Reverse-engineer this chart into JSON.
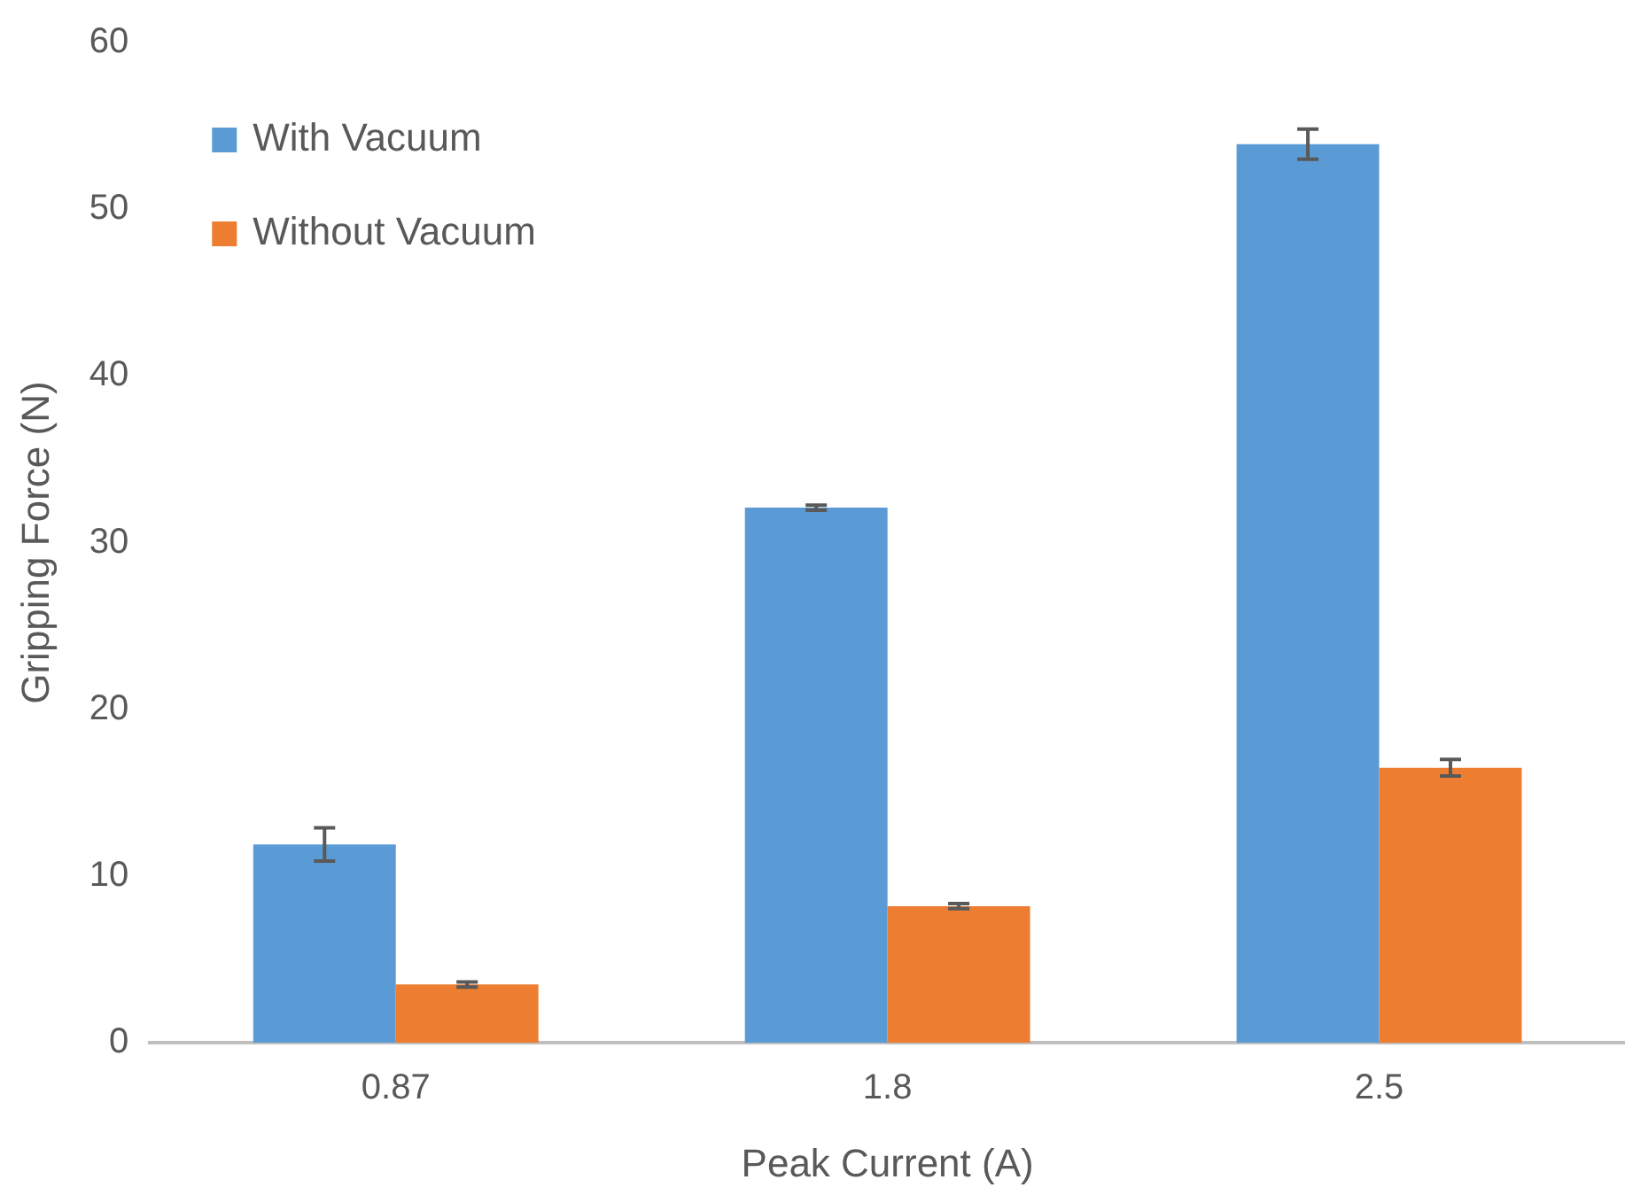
{
  "chart_data": {
    "type": "bar",
    "xlabel": "Peak Current (A)",
    "ylabel": "Gripping Force (N)",
    "categories": [
      "0.87",
      "1.8",
      "2.5"
    ],
    "series": [
      {
        "name": "With Vacuum",
        "color": "#5b9bd5",
        "values": [
          11.9,
          32.1,
          53.9
        ],
        "errors": [
          1.0,
          0.15,
          0.9
        ]
      },
      {
        "name": "Without Vacuum",
        "color": "#ed7d31",
        "values": [
          3.5,
          8.2,
          16.5
        ],
        "errors": [
          0.15,
          0.15,
          0.5
        ]
      }
    ],
    "ylim": [
      0,
      60
    ],
    "yticks": [
      0,
      10,
      20,
      30,
      40,
      50,
      60
    ],
    "grid": false,
    "legend": "top left"
  }
}
